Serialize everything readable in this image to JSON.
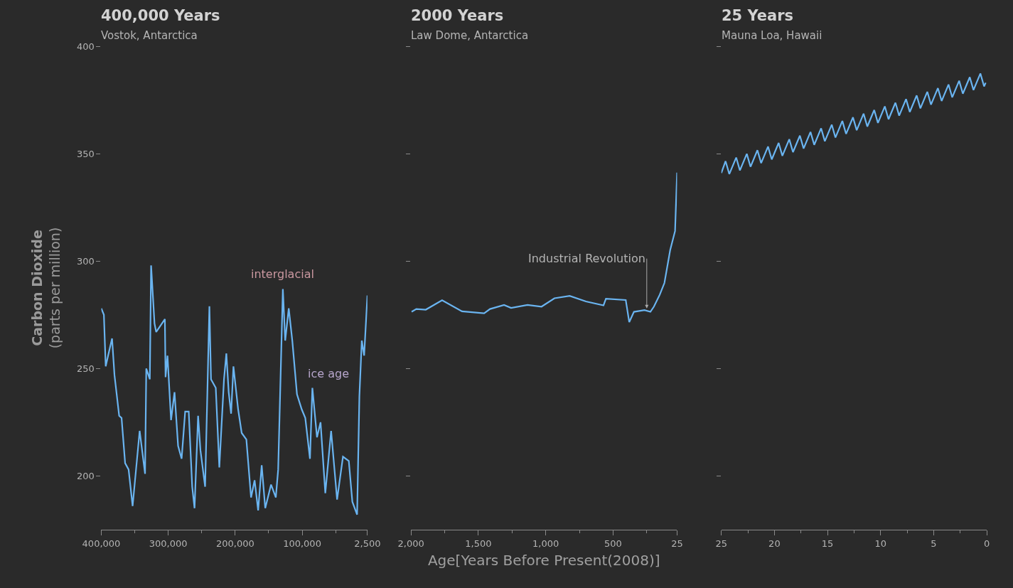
{
  "chart_data": [
    {
      "type": "line",
      "title": "400,000 Years",
      "subtitle": "Vostok, Antarctica",
      "ylabel": "Carbon Dioxide\n(parts per million)",
      "x": [
        400000,
        396100,
        393400,
        389100,
        383900,
        380300,
        373300,
        369700,
        364400,
        359200,
        353200,
        342700,
        334600,
        332800,
        327500,
        325600,
        320500,
        318000,
        305000,
        304000,
        301100,
        295800,
        290600,
        285300,
        280000,
        274700,
        269400,
        264200,
        260700,
        255400,
        251900,
        244900,
        238500,
        236100,
        229000,
        223700,
        216700,
        213200,
        209700,
        206100,
        202600,
        195600,
        190300,
        183300,
        176300,
        171000,
        165700,
        160400,
        155100,
        146400,
        139300,
        135800,
        128800,
        125300,
        120000,
        114700,
        107700,
        100600,
        95300,
        88300,
        84700,
        77800,
        72500,
        65400,
        56700,
        47800,
        39000,
        30300,
        25000,
        17900,
        14500,
        10900,
        7400,
        2500
      ],
      "series": [
        {
          "color": "#6ab4f0",
          "values": [
            278,
            275,
            251,
            257,
            264,
            247,
            228,
            227,
            206,
            203,
            186,
            221,
            201,
            250,
            245,
            298,
            271,
            267,
            273,
            246,
            256,
            226,
            239,
            214,
            208,
            230,
            230,
            195,
            185,
            228,
            212,
            195,
            279,
            245,
            241,
            204,
            245,
            257,
            239,
            229,
            251,
            231,
            220,
            217,
            190,
            198,
            184,
            205,
            185,
            196,
            190,
            203,
            287,
            263,
            278,
            263,
            238,
            231,
            227,
            208,
            241,
            218,
            225,
            192,
            221,
            189,
            209,
            207,
            188,
            182,
            237,
            263,
            256,
            284
          ]
        }
      ],
      "annotations": [
        {
          "text": "interglacial",
          "x": 128800,
          "y": 287
        },
        "ice age"
      ],
      "xlim": [
        400000,
        2500
      ],
      "xticks": [
        {
          "value": 400000,
          "label": "400,000"
        },
        {
          "value": 300000,
          "label": "300,000"
        },
        {
          "value": 200000,
          "label": "200,000"
        },
        {
          "value": 100000,
          "label": "100,000"
        },
        {
          "value": 2500,
          "label": "2,500"
        }
      ],
      "ylim": [
        175,
        400
      ],
      "yticks": [
        200,
        250,
        300,
        350,
        400
      ],
      "grid": false,
      "line_style": "solid",
      "marker": "none"
    },
    {
      "type": "line",
      "title": "2000 Years",
      "subtitle": "Law Dome, Antarctica",
      "xlabel": "Age[Years Before Present(2008)]",
      "x": [
        1995,
        1960,
        1890,
        1769,
        1621,
        1457,
        1413,
        1309,
        1257,
        1135,
        1031,
        935,
        822,
        701,
        571,
        553,
        406,
        380,
        345,
        267,
        223,
        197,
        154,
        119,
        76,
        40,
        25
      ],
      "series": [
        {
          "color": "#6ab4f0",
          "values": [
            276.4,
            277.7,
            277.4,
            281.8,
            276.6,
            275.7,
            277.7,
            279.6,
            278.2,
            279.6,
            278.8,
            282.7,
            283.8,
            281.2,
            279.4,
            282.5,
            281.9,
            271.6,
            276.4,
            277.2,
            276.4,
            278.8,
            284.3,
            289.8,
            305.2,
            314,
            341.2
          ]
        }
      ],
      "annotations": [
        {
          "text": "Industrial Revolution",
          "x": 250,
          "y": 278
        }
      ],
      "xlim": [
        2000,
        25
      ],
      "xticks": [
        {
          "value": 2000,
          "label": "2,000"
        },
        {
          "value": 1500,
          "label": "1,500"
        },
        {
          "value": 1000,
          "label": "1,000"
        },
        500,
        25
      ],
      "ylim": [
        175,
        400
      ],
      "yticks": [
        200,
        250,
        300,
        350,
        400
      ],
      "tick_labels": "x",
      "grid": false,
      "line_style": "solid",
      "marker": "none"
    },
    {
      "type": "line",
      "title": "25 Years",
      "subtitle": "Mauna Loa, Hawaii",
      "x": [
        25,
        24.6,
        24.25,
        23.6,
        23.25,
        22.6,
        22.25,
        21.6,
        21.25,
        20.6,
        20.25,
        19.6,
        19.25,
        18.6,
        18.25,
        17.6,
        17.25,
        16.6,
        16.25,
        15.6,
        15.25,
        14.6,
        14.25,
        13.6,
        13.25,
        12.6,
        12.25,
        11.6,
        11.25,
        10.6,
        10.25,
        9.6,
        9.25,
        8.6,
        8.25,
        7.6,
        7.25,
        6.6,
        6.25,
        5.6,
        5.25,
        4.6,
        4.25,
        3.6,
        3.25,
        2.6,
        2.25,
        1.6,
        1.25,
        0.6,
        0.25,
        0.1
      ],
      "series": [
        {
          "color": "#6ab4f0",
          "values": [
            341,
            346.5,
            340.5,
            348.2,
            342.2,
            349.9,
            343.9,
            351.6,
            345.6,
            353.3,
            347.3,
            355,
            349,
            356.7,
            350.7,
            358.4,
            352.4,
            360.1,
            354.1,
            361.8,
            355.8,
            363.5,
            357.5,
            365.2,
            359.2,
            366.9,
            360.9,
            368.6,
            362.6,
            370.3,
            364.3,
            372,
            366,
            373.7,
            367.7,
            375.4,
            369.4,
            377.1,
            371.1,
            378.8,
            372.8,
            380.5,
            374.5,
            382.2,
            376.2,
            383.9,
            377.9,
            385.6,
            379.6,
            387.3,
            381.3,
            383
          ]
        }
      ],
      "xlim": [
        25,
        0
      ],
      "xticks": [
        25,
        20,
        15,
        10,
        5,
        0
      ],
      "ylim": [
        175,
        400
      ],
      "yticks": [
        200,
        250,
        300,
        350,
        400
      ],
      "tick_labels": "x",
      "grid": false,
      "line_style": "solid",
      "marker": "none"
    }
  ]
}
